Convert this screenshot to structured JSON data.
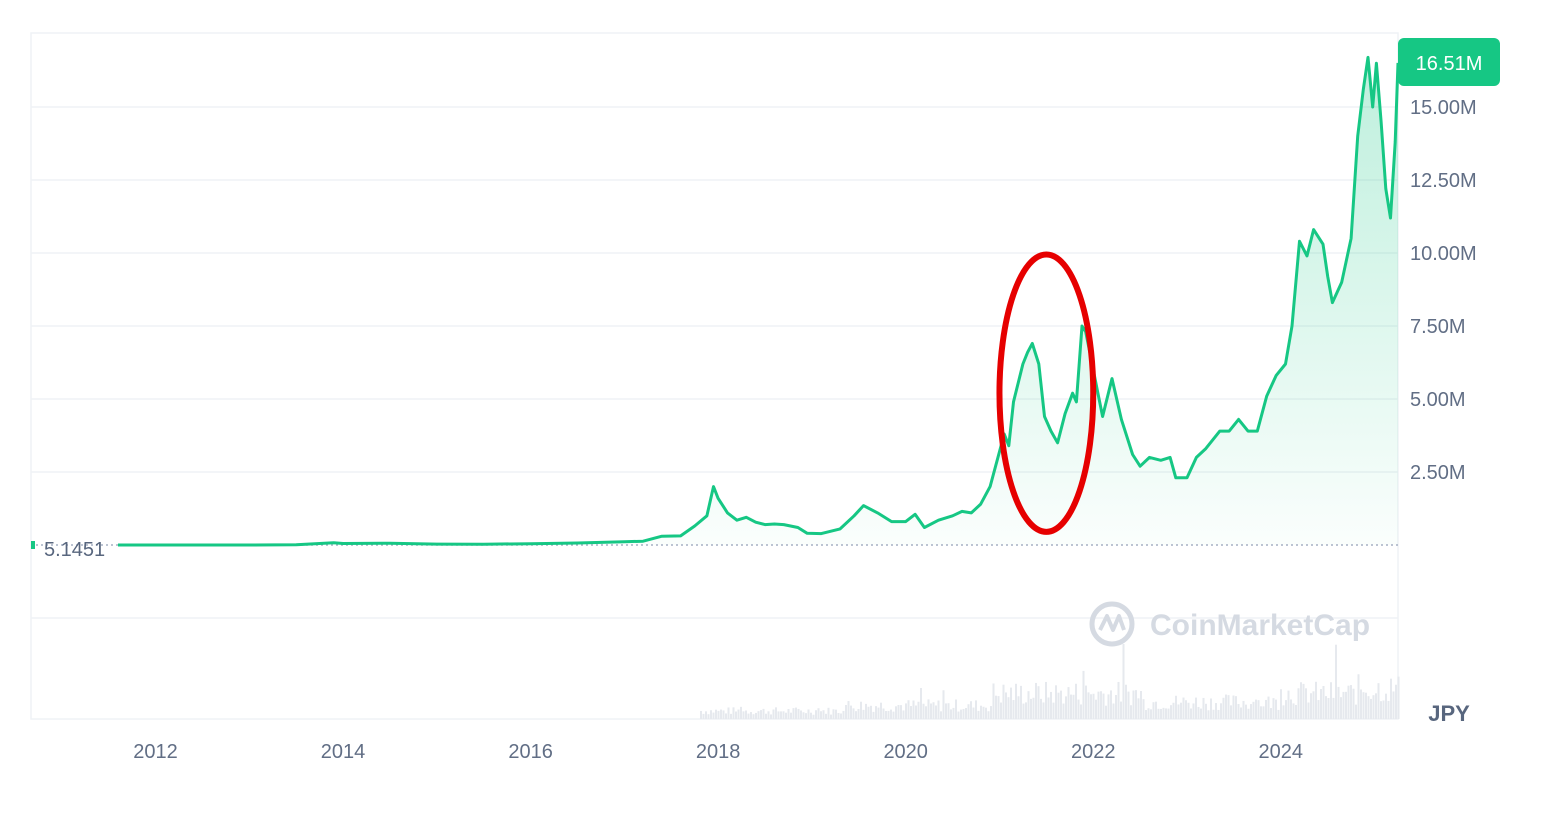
{
  "chart_data": {
    "type": "area",
    "currency": "JPY",
    "current_price_label": "16.51M",
    "baseline_label": "5.1451",
    "watermark": "CoinMarketCap",
    "y_ticks": [
      {
        "label": "2.50M",
        "value": 2500000
      },
      {
        "label": "5.00M",
        "value": 5000000
      },
      {
        "label": "7.50M",
        "value": 7500000
      },
      {
        "label": "10.00M",
        "value": 10000000
      },
      {
        "label": "12.50M",
        "value": 12500000
      },
      {
        "label": "15.00M",
        "value": 15000000
      }
    ],
    "x_ticks": [
      {
        "label": "2012",
        "value": 2012
      },
      {
        "label": "2014",
        "value": 2014
      },
      {
        "label": "2016",
        "value": 2016
      },
      {
        "label": "2018",
        "value": 2018
      },
      {
        "label": "2020",
        "value": 2020
      },
      {
        "label": "2022",
        "value": 2022
      },
      {
        "label": "2024",
        "value": 2024
      }
    ],
    "xlim": [
      2011.6,
      2025.25
    ],
    "ylim": [
      0,
      17000000
    ],
    "grid": true,
    "line_color": "#16c784",
    "current_badge_color": "#16c784",
    "annotation": {
      "shape": "ellipse",
      "color": "#e60000",
      "x_center": 2021.5,
      "y_center": 5200000,
      "x_span": [
        2021.05,
        2022.05
      ],
      "y_span": [
        450000,
        9950000
      ]
    },
    "series": [
      {
        "points": [
          [
            2011.6,
            5.1451
          ],
          [
            2012.5,
            600
          ],
          [
            2013.0,
            1500
          ],
          [
            2013.5,
            10000
          ],
          [
            2013.9,
            80000
          ],
          [
            2014.0,
            50000
          ],
          [
            2014.5,
            60000
          ],
          [
            2015.0,
            30000
          ],
          [
            2015.5,
            28000
          ],
          [
            2016.0,
            45000
          ],
          [
            2016.5,
            70000
          ],
          [
            2017.0,
            110000
          ],
          [
            2017.2,
            130000
          ],
          [
            2017.4,
            300000
          ],
          [
            2017.6,
            310000
          ],
          [
            2017.75,
            650000
          ],
          [
            2017.88,
            1000000
          ],
          [
            2017.95,
            2000000
          ],
          [
            2018.0,
            1600000
          ],
          [
            2018.1,
            1100000
          ],
          [
            2018.2,
            850000
          ],
          [
            2018.3,
            950000
          ],
          [
            2018.4,
            780000
          ],
          [
            2018.5,
            700000
          ],
          [
            2018.6,
            720000
          ],
          [
            2018.7,
            700000
          ],
          [
            2018.85,
            600000
          ],
          [
            2018.95,
            400000
          ],
          [
            2019.1,
            390000
          ],
          [
            2019.3,
            550000
          ],
          [
            2019.45,
            1000000
          ],
          [
            2019.55,
            1350000
          ],
          [
            2019.7,
            1100000
          ],
          [
            2019.85,
            800000
          ],
          [
            2020.0,
            800000
          ],
          [
            2020.1,
            1050000
          ],
          [
            2020.2,
            600000
          ],
          [
            2020.35,
            850000
          ],
          [
            2020.5,
            1000000
          ],
          [
            2020.6,
            1150000
          ],
          [
            2020.7,
            1100000
          ],
          [
            2020.8,
            1400000
          ],
          [
            2020.9,
            2000000
          ],
          [
            2021.0,
            3200000
          ],
          [
            2021.05,
            3800000
          ],
          [
            2021.1,
            3400000
          ],
          [
            2021.15,
            4900000
          ],
          [
            2021.25,
            6200000
          ],
          [
            2021.3,
            6600000
          ],
          [
            2021.35,
            6900000
          ],
          [
            2021.42,
            6200000
          ],
          [
            2021.48,
            4400000
          ],
          [
            2021.55,
            3900000
          ],
          [
            2021.62,
            3500000
          ],
          [
            2021.7,
            4500000
          ],
          [
            2021.78,
            5200000
          ],
          [
            2021.82,
            4900000
          ],
          [
            2021.88,
            7500000
          ],
          [
            2021.92,
            7300000
          ],
          [
            2021.97,
            6500000
          ],
          [
            2022.05,
            5200000
          ],
          [
            2022.1,
            4400000
          ],
          [
            2022.2,
            5700000
          ],
          [
            2022.3,
            4300000
          ],
          [
            2022.42,
            3100000
          ],
          [
            2022.5,
            2700000
          ],
          [
            2022.6,
            3000000
          ],
          [
            2022.72,
            2900000
          ],
          [
            2022.82,
            3000000
          ],
          [
            2022.88,
            2300000
          ],
          [
            2023.0,
            2300000
          ],
          [
            2023.1,
            3000000
          ],
          [
            2023.2,
            3300000
          ],
          [
            2023.35,
            3900000
          ],
          [
            2023.45,
            3900000
          ],
          [
            2023.55,
            4300000
          ],
          [
            2023.65,
            3900000
          ],
          [
            2023.75,
            3900000
          ],
          [
            2023.85,
            5100000
          ],
          [
            2023.95,
            5800000
          ],
          [
            2024.05,
            6200000
          ],
          [
            2024.12,
            7500000
          ],
          [
            2024.2,
            10400000
          ],
          [
            2024.28,
            9900000
          ],
          [
            2024.35,
            10800000
          ],
          [
            2024.45,
            10300000
          ],
          [
            2024.5,
            9200000
          ],
          [
            2024.55,
            8300000
          ],
          [
            2024.65,
            9000000
          ],
          [
            2024.75,
            10500000
          ],
          [
            2024.82,
            14000000
          ],
          [
            2024.88,
            15600000
          ],
          [
            2024.93,
            16700000
          ],
          [
            2024.98,
            15000000
          ],
          [
            2025.02,
            16500000
          ],
          [
            2025.07,
            14500000
          ],
          [
            2025.12,
            12200000
          ],
          [
            2025.17,
            11200000
          ],
          [
            2025.22,
            13800000
          ],
          [
            2025.25,
            16510000
          ]
        ]
      }
    ]
  }
}
